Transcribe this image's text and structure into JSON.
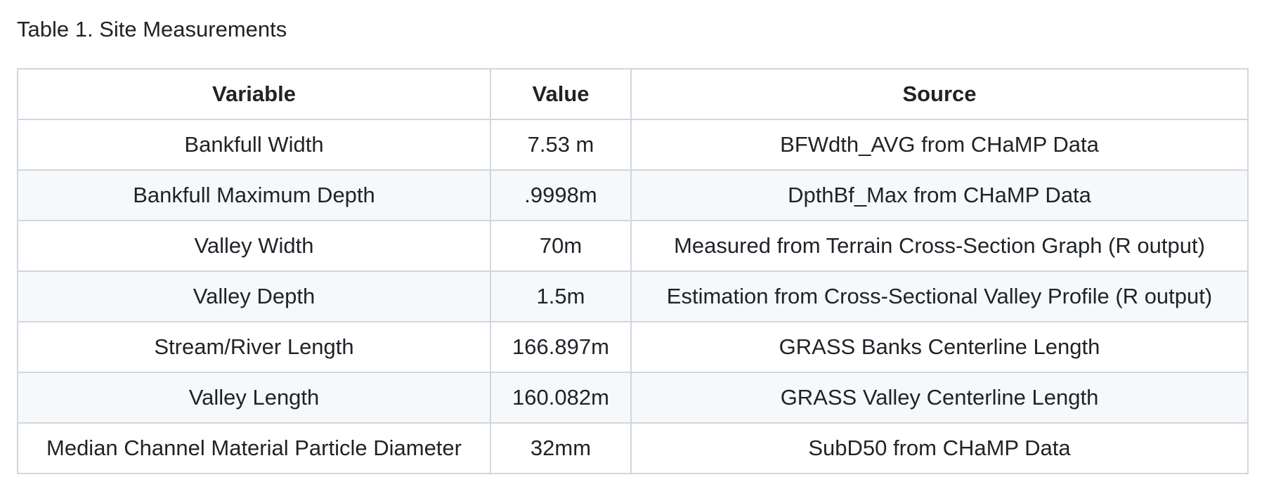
{
  "caption": "Table 1. Site Measurements",
  "table": {
    "headers": [
      "Variable",
      "Value",
      "Source"
    ],
    "rows": [
      [
        "Bankfull Width",
        "7.53 m",
        "BFWdth_AVG from CHaMP Data"
      ],
      [
        "Bankfull Maximum Depth",
        ".9998m",
        "DpthBf_Max from CHaMP Data"
      ],
      [
        "Valley Width",
        "70m",
        "Measured from Terrain Cross-Section Graph (R output)"
      ],
      [
        "Valley Depth",
        "1.5m",
        "Estimation from Cross-Sectional Valley Profile (R output)"
      ],
      [
        "Stream/River Length",
        "166.897m",
        "GRASS Banks Centerline Length"
      ],
      [
        "Valley Length",
        "160.082m",
        "GRASS Valley Centerline Length"
      ],
      [
        "Median Channel Material Particle Diameter",
        "32mm",
        "SubD50 from CHaMP Data"
      ]
    ]
  },
  "colors": {
    "border": "#d0d7de",
    "stripe": "#f6f8fa",
    "text": "#1f2328"
  }
}
